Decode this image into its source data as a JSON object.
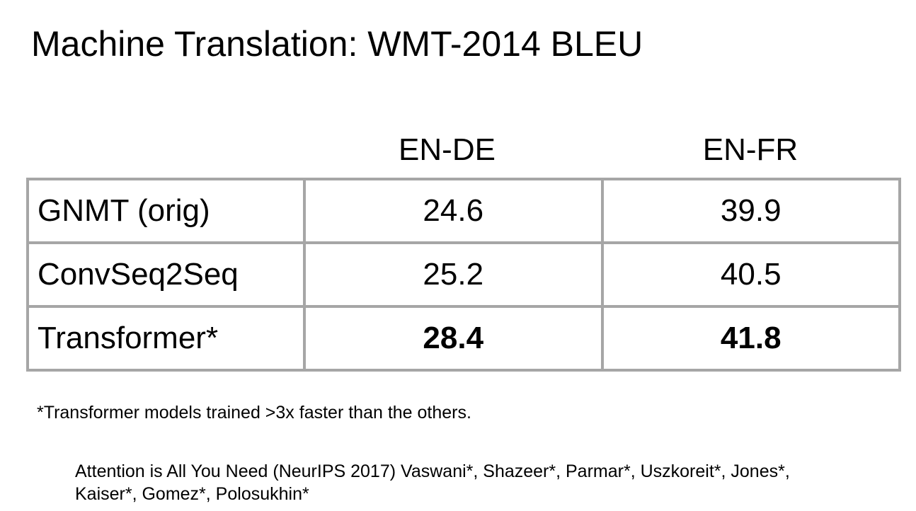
{
  "title": "Machine Translation: WMT-2014 BLEU",
  "columns": [
    "EN-DE",
    "EN-FR"
  ],
  "rows": [
    {
      "model": "GNMT (orig)",
      "en_de": "24.6",
      "en_fr": "39.9"
    },
    {
      "model": "ConvSeq2Seq",
      "en_de": "25.2",
      "en_fr": "40.5"
    },
    {
      "model": "Transformer*",
      "en_de": "28.4",
      "en_fr": "41.8"
    }
  ],
  "footnote": "*Transformer models trained >3x faster than the others.",
  "citation": "Attention is All You Need (NeurIPS 2017) Vaswani*, Shazeer*, Parmar*, Uszkoreit*, Jones*, Kaiser*, Gomez*, Polosukhin*",
  "colors": {
    "table_border": "#a6a6a6",
    "text": "#000000",
    "background": "#ffffff"
  }
}
